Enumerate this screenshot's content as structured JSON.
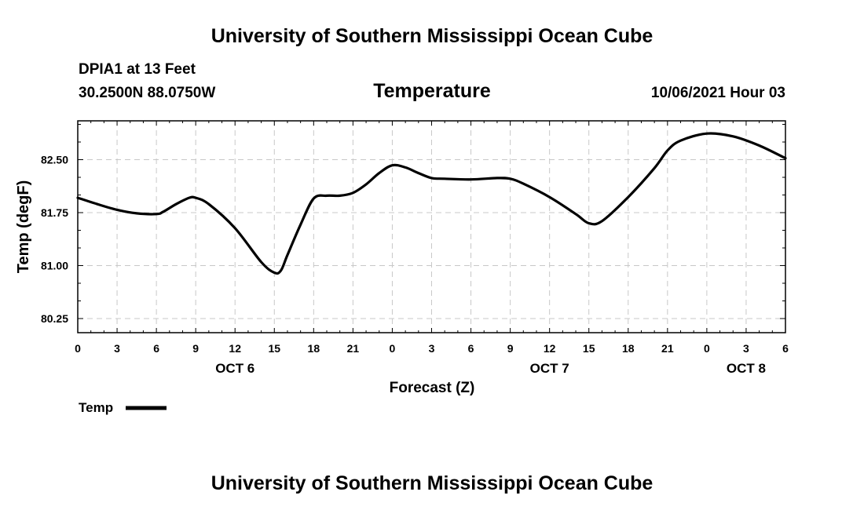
{
  "header": {
    "org_title": "University of Southern Mississippi Ocean Cube",
    "station": "DPIA1 at 13 Feet",
    "coords": "30.2500N  88.0750W",
    "chart_title": "Temperature",
    "run_time": "10/06/2021 Hour 03"
  },
  "footer": {
    "org_title": "University of Southern Mississippi Ocean Cube"
  },
  "chart_data": {
    "type": "line",
    "title": "Temperature",
    "xlabel": "Forecast (Z)",
    "ylabel": "Temp (degF)",
    "xlim": [
      0,
      54
    ],
    "ylim": [
      80.05,
      83.05
    ],
    "y_ticks": [
      80.25,
      81.0,
      81.75,
      82.5
    ],
    "y_tick_labels": [
      "80.25",
      "81.00",
      "81.75",
      "82.50"
    ],
    "x_ticks": [
      0,
      3,
      6,
      9,
      12,
      15,
      18,
      21,
      24,
      27,
      30,
      33,
      36,
      39,
      42,
      45,
      48,
      51,
      54
    ],
    "x_tick_labels": [
      "0",
      "3",
      "6",
      "9",
      "12",
      "15",
      "18",
      "21",
      "0",
      "3",
      "6",
      "9",
      "12",
      "15",
      "18",
      "21",
      "0",
      "3",
      "6"
    ],
    "day_labels": [
      {
        "x": 12,
        "label": "OCT 6"
      },
      {
        "x": 36,
        "label": "OCT 7"
      },
      {
        "x": 51,
        "label": "OCT 8"
      }
    ],
    "grid": true,
    "legend": "bottom-left",
    "series": [
      {
        "name": "Temp",
        "color": "#000000",
        "x": [
          0,
          1.5,
          3,
          4.5,
          6,
          6.5,
          7.5,
          8.5,
          9,
          10,
          12,
          14,
          15,
          15.5,
          16,
          17,
          18,
          19,
          20,
          21,
          22,
          23,
          24,
          25,
          26,
          27,
          28,
          30,
          32,
          33,
          34,
          36,
          38,
          39,
          40,
          42,
          44,
          45,
          46,
          48,
          50,
          52,
          54
        ],
        "values": [
          81.96,
          81.87,
          81.79,
          81.74,
          81.73,
          81.76,
          81.87,
          81.96,
          81.96,
          81.87,
          81.53,
          81.05,
          80.9,
          80.93,
          81.15,
          81.58,
          81.95,
          81.99,
          81.99,
          82.03,
          82.15,
          82.31,
          82.42,
          82.39,
          82.31,
          82.24,
          82.23,
          82.22,
          82.24,
          82.23,
          82.16,
          81.97,
          81.73,
          81.6,
          81.63,
          81.97,
          82.38,
          82.63,
          82.77,
          82.87,
          82.83,
          82.7,
          82.52
        ]
      }
    ]
  }
}
